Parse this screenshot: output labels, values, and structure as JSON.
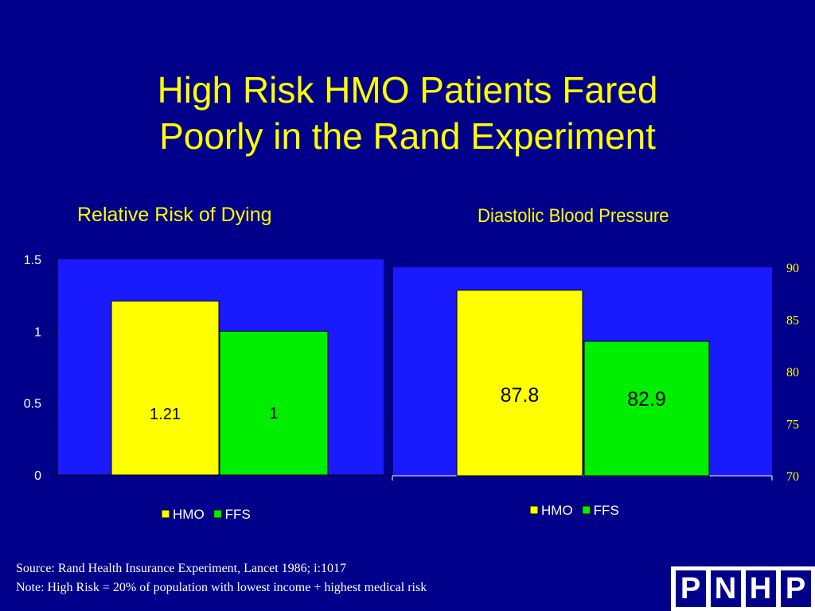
{
  "slide": {
    "title_line1": "High Risk HMO Patients Fared",
    "title_line2": "Poorly in the Rand Experiment",
    "source": "Source: Rand Health Insurance Experiment, Lancet 1986; i:1017",
    "note": "Note: High Risk = 20% of population with lowest income + highest medical risk",
    "logo_letters": [
      "P",
      "N",
      "H",
      "P"
    ]
  },
  "colors": {
    "background": "#00008b",
    "plot_area": "#1a1aff",
    "title": "#ffff00",
    "hmo": "#ffff00",
    "ffs": "#00ee00"
  },
  "chart_data": [
    {
      "type": "bar",
      "title": "Relative Risk of Dying",
      "categories": [
        ""
      ],
      "series": [
        {
          "name": "HMO",
          "values": [
            1.21
          ],
          "label": "1.21"
        },
        {
          "name": "FFS",
          "values": [
            1
          ],
          "label": "1"
        }
      ],
      "ylim": [
        0,
        1.5
      ],
      "yticks": [
        "0",
        "0.5",
        "1",
        "1.5"
      ],
      "y_axis_side": "left",
      "legend": "bottom",
      "grid": false
    },
    {
      "type": "bar",
      "title": "Diastolic Blood Pressure",
      "categories": [
        ""
      ],
      "series": [
        {
          "name": "HMO",
          "values": [
            87.8
          ],
          "label": "87.8"
        },
        {
          "name": "FFS",
          "values": [
            82.9
          ],
          "label": "82.9"
        }
      ],
      "ylim": [
        70,
        90
      ],
      "yticks": [
        "70",
        "75",
        "80",
        "85",
        "90"
      ],
      "y_axis_side": "right",
      "legend": "bottom",
      "grid": false
    }
  ]
}
